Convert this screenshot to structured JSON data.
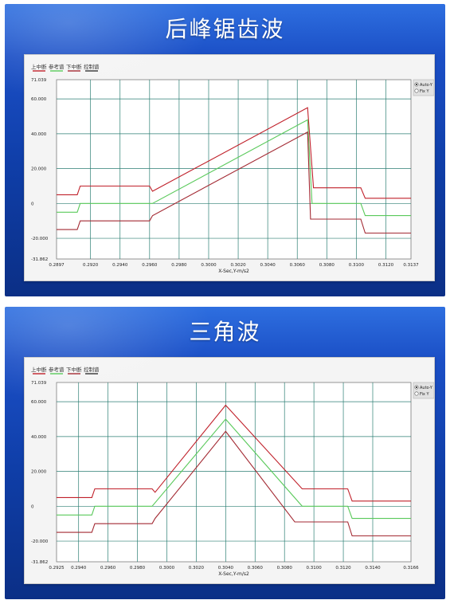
{
  "chart_data": [
    {
      "type": "line",
      "title": "后峰锯齿波",
      "legend": [
        "上中断",
        "参考谱",
        "下中断",
        "控制谱"
      ],
      "xlabel": "X-Sec,Y-m/s2",
      "xlim": [
        0.2897,
        0.3137
      ],
      "ylim": [
        -31.862,
        71.039
      ],
      "x_ticks": [
        "0.2897",
        "0.2920",
        "0.2940",
        "0.2960",
        "0.2980",
        "0.3000",
        "0.3020",
        "0.3040",
        "0.3060",
        "0.3080",
        "0.3100",
        "0.3120",
        "0.3137"
      ],
      "y_ticks": [
        "71.039",
        "60.000",
        "40.000",
        "20.000",
        "0",
        "-20.000",
        "-31.862"
      ],
      "radio_options": [
        {
          "label": "Auto-Y",
          "selected": true
        },
        {
          "label": "Fix Y",
          "selected": false
        }
      ],
      "series": [
        {
          "name": "上中断",
          "color": "#c0202a",
          "x": [
            0.2897,
            0.2911,
            0.2913,
            0.2926,
            0.2949,
            0.296,
            0.2962,
            0.3067,
            0.3071,
            0.3084,
            0.3103,
            0.3106,
            0.3137
          ],
          "y": [
            5,
            5,
            10,
            10,
            10,
            10,
            7,
            55,
            9,
            9,
            9,
            3,
            3
          ]
        },
        {
          "name": "参考谱",
          "color": "#59c95a",
          "x": [
            0.2897,
            0.2911,
            0.2913,
            0.2926,
            0.2949,
            0.296,
            0.2962,
            0.3067,
            0.307,
            0.3084,
            0.3103,
            0.3106,
            0.3137
          ],
          "y": [
            -5,
            -5,
            0,
            0,
            0,
            0,
            0,
            48,
            0,
            0,
            0,
            -7,
            -7
          ]
        },
        {
          "name": "下中断",
          "color": "#a32a33",
          "x": [
            0.2897,
            0.2911,
            0.2913,
            0.2926,
            0.2949,
            0.296,
            0.2962,
            0.3067,
            0.3069,
            0.3084,
            0.3103,
            0.3106,
            0.3137
          ],
          "y": [
            -15,
            -15,
            -10,
            -10,
            -10,
            -10,
            -7,
            41,
            -9,
            -9,
            -9,
            -17,
            -17
          ]
        }
      ]
    },
    {
      "type": "line",
      "title": "三角波",
      "legend": [
        "上中断",
        "参考谱",
        "下中断",
        "控制谱"
      ],
      "xlabel": "X-Sec,Y-m/s2",
      "xlim": [
        0.2925,
        0.3166
      ],
      "ylim": [
        -31.862,
        71.039
      ],
      "x_ticks": [
        "0.2925",
        "0.2940",
        "0.2960",
        "0.2980",
        "0.3000",
        "0.3020",
        "0.3040",
        "0.3060",
        "0.3080",
        "0.3100",
        "0.3120",
        "0.3140",
        "0.3166"
      ],
      "y_ticks": [
        "71.039",
        "60.000",
        "40.000",
        "20.000",
        "0",
        "-20.000",
        "-31.862"
      ],
      "radio_options": [
        {
          "label": "Auto-Y",
          "selected": true
        },
        {
          "label": "Fix Y",
          "selected": false
        }
      ],
      "series": [
        {
          "name": "上中断",
          "color": "#c0202a",
          "x": [
            0.2925,
            0.2949,
            0.2951,
            0.2972,
            0.299,
            0.2992,
            0.304,
            0.3092,
            0.3097,
            0.3123,
            0.3126,
            0.3166
          ],
          "y": [
            5,
            5,
            10,
            10,
            10,
            8,
            58,
            10,
            10,
            10,
            3,
            3
          ]
        },
        {
          "name": "参考谱",
          "color": "#59c95a",
          "x": [
            0.2925,
            0.2949,
            0.2951,
            0.2972,
            0.299,
            0.304,
            0.3092,
            0.3097,
            0.3123,
            0.3126,
            0.3166
          ],
          "y": [
            -5,
            -5,
            0,
            0,
            0,
            50,
            0,
            0,
            0,
            -7,
            -7
          ]
        },
        {
          "name": "下中断",
          "color": "#a32a33",
          "x": [
            0.2925,
            0.2949,
            0.2951,
            0.2972,
            0.299,
            0.2992,
            0.304,
            0.3087,
            0.3097,
            0.3123,
            0.3126,
            0.3166
          ],
          "y": [
            -15,
            -15,
            -10,
            -10,
            -10,
            -7,
            43,
            -9,
            -9,
            -9,
            -17,
            -17
          ]
        }
      ]
    }
  ]
}
